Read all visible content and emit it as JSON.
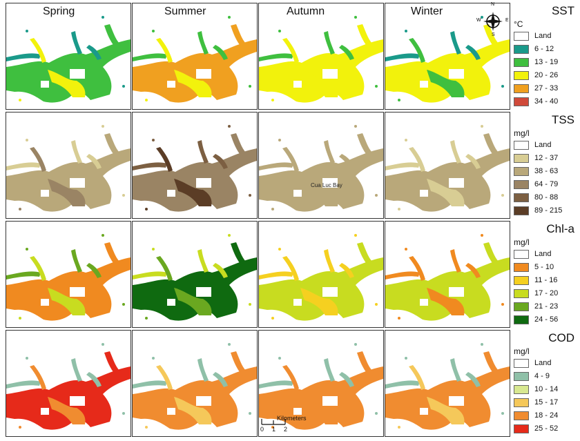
{
  "seasons": [
    "Spring",
    "Summer",
    "Autumn",
    "Winter"
  ],
  "land_color": "#ffffff",
  "rows": [
    {
      "parameter": "SST",
      "unit": "°C",
      "classes": [
        {
          "label": "Land",
          "color": "#ffffff"
        },
        {
          "label": "6 - 12",
          "color": "#1a9a8a"
        },
        {
          "label": "13 - 19",
          "color": "#3fbf3f"
        },
        {
          "label": "20 - 26",
          "color": "#f2f20c"
        },
        {
          "label": "27 - 33",
          "color": "#f0a020"
        },
        {
          "label": "34 - 40",
          "color": "#d04a3a"
        }
      ],
      "season_main_class": [
        2,
        4,
        3,
        3
      ],
      "season_accent_class": [
        3,
        3,
        3,
        2
      ],
      "season_edge_class": [
        1,
        2,
        2,
        1
      ]
    },
    {
      "parameter": "TSS",
      "unit": "mg/l",
      "classes": [
        {
          "label": "Land",
          "color": "#ffffff"
        },
        {
          "label": "12 - 37",
          "color": "#d8cd94"
        },
        {
          "label": "38 - 63",
          "color": "#b9a87a"
        },
        {
          "label": "64 - 79",
          "color": "#9a8464"
        },
        {
          "label": "80 - 88",
          "color": "#7c5f42"
        },
        {
          "label": "89 - 215",
          "color": "#5b3d26"
        }
      ],
      "season_main_class": [
        2,
        3,
        2,
        2
      ],
      "season_accent_class": [
        3,
        5,
        2,
        1
      ],
      "season_edge_class": [
        1,
        4,
        2,
        1
      ]
    },
    {
      "parameter": "Chl-a",
      "unit": "mg/l",
      "classes": [
        {
          "label": "Land",
          "color": "#ffffff"
        },
        {
          "label": "5 - 10",
          "color": "#f08a20"
        },
        {
          "label": "11 - 16",
          "color": "#f5d020"
        },
        {
          "label": "17 - 20",
          "color": "#c8dc20"
        },
        {
          "label": "21 - 23",
          "color": "#6aa820"
        },
        {
          "label": "24 - 56",
          "color": "#0f6a10"
        }
      ],
      "season_main_class": [
        1,
        5,
        3,
        3
      ],
      "season_accent_class": [
        3,
        4,
        2,
        1
      ],
      "season_edge_class": [
        4,
        3,
        2,
        1
      ]
    },
    {
      "parameter": "COD",
      "unit": "mg/l",
      "classes": [
        {
          "label": "Land",
          "color": "#ffffff"
        },
        {
          "label": "4 - 9",
          "color": "#8fc0a8"
        },
        {
          "label": "10 - 14",
          "color": "#d8e890"
        },
        {
          "label": "15 - 17",
          "color": "#f5c85a"
        },
        {
          "label": "18 - 24",
          "color": "#f08c30"
        },
        {
          "label": "25 - 52",
          "color": "#e62a1a"
        }
      ],
      "season_main_class": [
        5,
        4,
        4,
        4
      ],
      "season_accent_class": [
        4,
        3,
        4,
        3
      ],
      "season_edge_class": [
        1,
        1,
        1,
        1
      ]
    }
  ],
  "annotation": {
    "bay_name": "Cua Luc Bay"
  },
  "compass": {
    "n": "N",
    "e": "E",
    "s": "S",
    "w": "W"
  },
  "scale_bar": {
    "unit": "Kilometers",
    "ticks": [
      "0",
      "1",
      "2"
    ]
  }
}
